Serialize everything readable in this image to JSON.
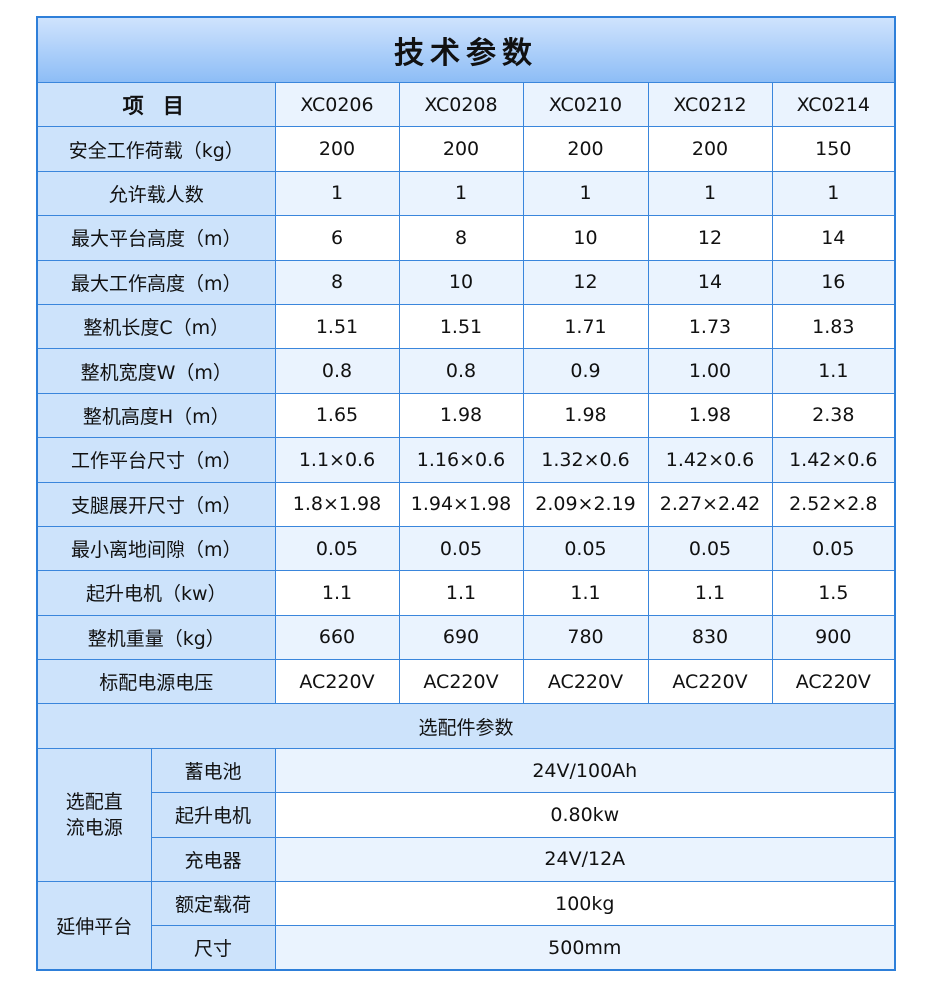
{
  "title": "技术参数",
  "header": {
    "label": "项 目",
    "models": [
      "XC0206",
      "XC0208",
      "XC0210",
      "XC0212",
      "XC0214"
    ]
  },
  "rows": [
    {
      "label": "安全工作荷载（kg）",
      "values": [
        "200",
        "200",
        "200",
        "200",
        "150"
      ]
    },
    {
      "label": "允许载人数",
      "values": [
        "1",
        "1",
        "1",
        "1",
        "1"
      ]
    },
    {
      "label": "最大平台高度（m）",
      "values": [
        "6",
        "8",
        "10",
        "12",
        "14"
      ]
    },
    {
      "label": "最大工作高度（m）",
      "values": [
        "8",
        "10",
        "12",
        "14",
        "16"
      ]
    },
    {
      "label": "整机长度C（m）",
      "values": [
        "1.51",
        "1.51",
        "1.71",
        "1.73",
        "1.83"
      ]
    },
    {
      "label": "整机宽度W（m）",
      "values": [
        "0.8",
        "0.8",
        "0.9",
        "1.00",
        "1.1"
      ]
    },
    {
      "label": "整机高度H（m）",
      "values": [
        "1.65",
        "1.98",
        "1.98",
        "1.98",
        "2.38"
      ]
    },
    {
      "label": "工作平台尺寸（m）",
      "values": [
        "1.1×0.6",
        "1.16×0.6",
        "1.32×0.6",
        "1.42×0.6",
        "1.42×0.6"
      ]
    },
    {
      "label": "支腿展开尺寸（m）",
      "values": [
        "1.8×1.98",
        "1.94×1.98",
        "2.09×2.19",
        "2.27×2.42",
        "2.52×2.8"
      ]
    },
    {
      "label": "最小离地间隙（m）",
      "values": [
        "0.05",
        "0.05",
        "0.05",
        "0.05",
        "0.05"
      ]
    },
    {
      "label": "起升电机（kw）",
      "values": [
        "1.1",
        "1.1",
        "1.1",
        "1.1",
        "1.5"
      ]
    },
    {
      "label": "整机重量（kg）",
      "values": [
        "660",
        "690",
        "780",
        "830",
        "900"
      ]
    },
    {
      "label": "标配电源电压",
      "values": [
        "AC220V",
        "AC220V",
        "AC220V",
        "AC220V",
        "AC220V"
      ]
    }
  ],
  "options": {
    "title": "选配件参数",
    "groups": [
      {
        "label": "选配直流电源",
        "items": [
          {
            "label": "蓄电池",
            "value": "24V/100Ah"
          },
          {
            "label": "起升电机",
            "value": "0.80kw"
          },
          {
            "label": "充电器",
            "value": "24V/12A"
          }
        ]
      },
      {
        "label": "延伸平台",
        "items": [
          {
            "label": "额定载荷",
            "value": "100kg"
          },
          {
            "label": "尺寸",
            "value": "500mm"
          }
        ]
      }
    ]
  },
  "colors": {
    "border": "#2e7fd9",
    "label_bg": "#cde3fb",
    "stripe_bg": "#eaf3fe"
  }
}
